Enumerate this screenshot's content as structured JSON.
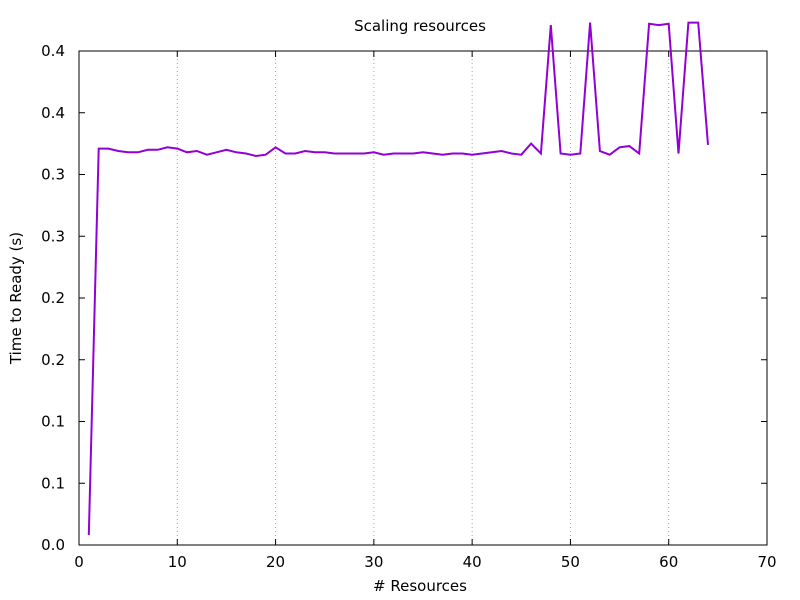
{
  "chart_data": {
    "type": "line",
    "title": "Scaling resources",
    "xlabel": "# Resources",
    "ylabel": "Time to Ready (s)",
    "xlim": [
      0,
      70
    ],
    "ylim": [
      0.0,
      0.4
    ],
    "x_ticks": [
      {
        "value": 0,
        "label": "0"
      },
      {
        "value": 10,
        "label": "10"
      },
      {
        "value": 20,
        "label": "20"
      },
      {
        "value": 30,
        "label": "30"
      },
      {
        "value": 40,
        "label": "40"
      },
      {
        "value": 50,
        "label": "50"
      },
      {
        "value": 60,
        "label": "60"
      },
      {
        "value": 70,
        "label": "70"
      }
    ],
    "y_ticks": [
      {
        "value": 0.0,
        "label": "0.0"
      },
      {
        "value": 0.05,
        "label": "0.1"
      },
      {
        "value": 0.1,
        "label": "0.1"
      },
      {
        "value": 0.15,
        "label": "0.2"
      },
      {
        "value": 0.2,
        "label": "0.2"
      },
      {
        "value": 0.25,
        "label": "0.3"
      },
      {
        "value": 0.3,
        "label": "0.3"
      },
      {
        "value": 0.35,
        "label": "0.4"
      },
      {
        "value": 0.4,
        "label": "0.4"
      }
    ],
    "grid": "vertical dotted at major x ticks",
    "series_color": "#9400d3",
    "series": [
      {
        "name": "",
        "x": [
          1,
          2,
          3,
          4,
          5,
          6,
          7,
          8,
          9,
          10,
          11,
          12,
          13,
          14,
          15,
          16,
          17,
          18,
          19,
          20,
          21,
          22,
          23,
          24,
          25,
          26,
          27,
          28,
          29,
          30,
          31,
          32,
          33,
          34,
          35,
          36,
          37,
          38,
          39,
          40,
          41,
          42,
          43,
          44,
          45,
          46,
          47,
          48,
          49,
          50,
          51,
          52,
          53,
          54,
          55,
          56,
          57,
          58,
          59,
          60,
          61,
          62,
          63,
          64
        ],
        "y": [
          0.008,
          0.321,
          0.321,
          0.319,
          0.318,
          0.318,
          0.32,
          0.32,
          0.322,
          0.321,
          0.318,
          0.319,
          0.316,
          0.318,
          0.32,
          0.318,
          0.317,
          0.315,
          0.316,
          0.322,
          0.317,
          0.317,
          0.319,
          0.318,
          0.318,
          0.317,
          0.317,
          0.317,
          0.317,
          0.318,
          0.316,
          0.317,
          0.317,
          0.317,
          0.318,
          0.317,
          0.316,
          0.317,
          0.317,
          0.316,
          0.317,
          0.318,
          0.319,
          0.317,
          0.316,
          0.325,
          0.317,
          0.421,
          0.317,
          0.316,
          0.317,
          0.423,
          0.319,
          0.316,
          0.322,
          0.323,
          0.317,
          0.422,
          0.421,
          0.422,
          0.317,
          0.423,
          0.423,
          0.324
        ]
      }
    ]
  }
}
